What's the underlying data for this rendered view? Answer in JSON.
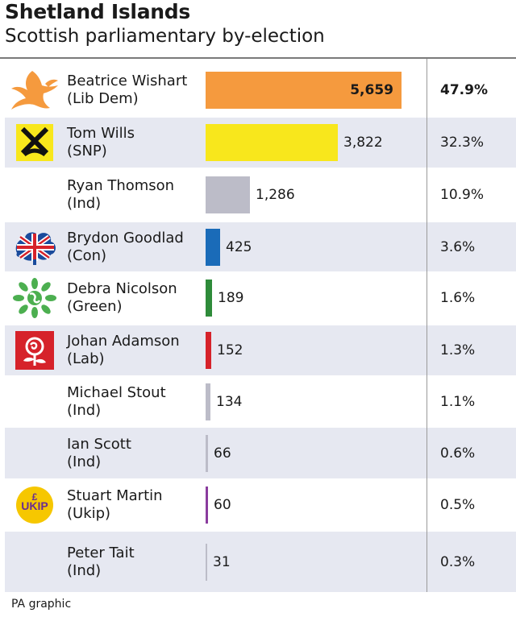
{
  "title": "Shetland Islands",
  "subtitle": "Scottish parliamentary by-election",
  "footer": "PA graphic",
  "chart_data": {
    "type": "bar",
    "orientation": "horizontal",
    "title": "Shetland Islands",
    "subtitle": "Scottish parliamentary by-election",
    "categories": [
      "Beatrice Wishart (Lib Dem)",
      "Tom Wills (SNP)",
      "Ryan Thomson (Ind)",
      "Brydon Goodlad (Con)",
      "Debra Nicolson (Green)",
      "Johan Adamson (Lab)",
      "Michael Stout (Ind)",
      "Ian Scott (Ind)",
      "Stuart Martin (Ukip)",
      "Peter Tait (Ind)"
    ],
    "values": [
      5659,
      3822,
      1286,
      425,
      189,
      152,
      134,
      66,
      60,
      31
    ],
    "rows": [
      {
        "name": "Beatrice Wishart",
        "party": "(Lib Dem)",
        "votes": 5659,
        "votes_label": "5,659",
        "pct": "47.9%",
        "color": "#f59a3e",
        "logo": "lib-dem-bird-icon",
        "shaded": false
      },
      {
        "name": "Tom Wills",
        "party": "(SNP)",
        "votes": 3822,
        "votes_label": "3,822",
        "pct": "32.3%",
        "color": "#f8e71c",
        "logo": "snp-icon",
        "shaded": true
      },
      {
        "name": "Ryan Thomson",
        "party": "(Ind)",
        "votes": 1286,
        "votes_label": "1,286",
        "pct": "10.9%",
        "color": "#bcbcc8",
        "logo": "",
        "shaded": false
      },
      {
        "name": "Brydon Goodlad",
        "party": "(Con)",
        "votes": 425,
        "votes_label": "425",
        "pct": "3.6%",
        "color": "#1a6bb8",
        "logo": "conservative-tree-icon",
        "shaded": true
      },
      {
        "name": "Debra Nicolson",
        "party": "(Green)",
        "votes": 189,
        "votes_label": "189",
        "pct": "1.6%",
        "color": "#2e8b3a",
        "logo": "green-globe-icon",
        "shaded": false
      },
      {
        "name": "Johan Adamson",
        "party": "(Lab)",
        "votes": 152,
        "votes_label": "152",
        "pct": "1.3%",
        "color": "#d6222a",
        "logo": "labour-rose-icon",
        "shaded": true
      },
      {
        "name": "Michael Stout",
        "party": "(Ind)",
        "votes": 134,
        "votes_label": "134",
        "pct": "1.1%",
        "color": "#bcbcc8",
        "logo": "",
        "shaded": false
      },
      {
        "name": "Ian Scott",
        "party": "(Ind)",
        "votes": 66,
        "votes_label": "66",
        "pct": "0.6%",
        "color": "#bcbcc8",
        "logo": "",
        "shaded": true
      },
      {
        "name": "Stuart Martin",
        "party": "(Ukip)",
        "votes": 60,
        "votes_label": "60",
        "pct": "0.5%",
        "color": "#8a3c9e",
        "logo": "ukip-icon",
        "shaded": false
      },
      {
        "name": "Peter Tait",
        "party": "(Ind)",
        "votes": 31,
        "votes_label": "31",
        "pct": "0.3%",
        "color": "#bcbcc8",
        "logo": "",
        "shaded": true
      }
    ],
    "xlim": [
      0,
      5659
    ],
    "grid": false,
    "legend": "none"
  }
}
